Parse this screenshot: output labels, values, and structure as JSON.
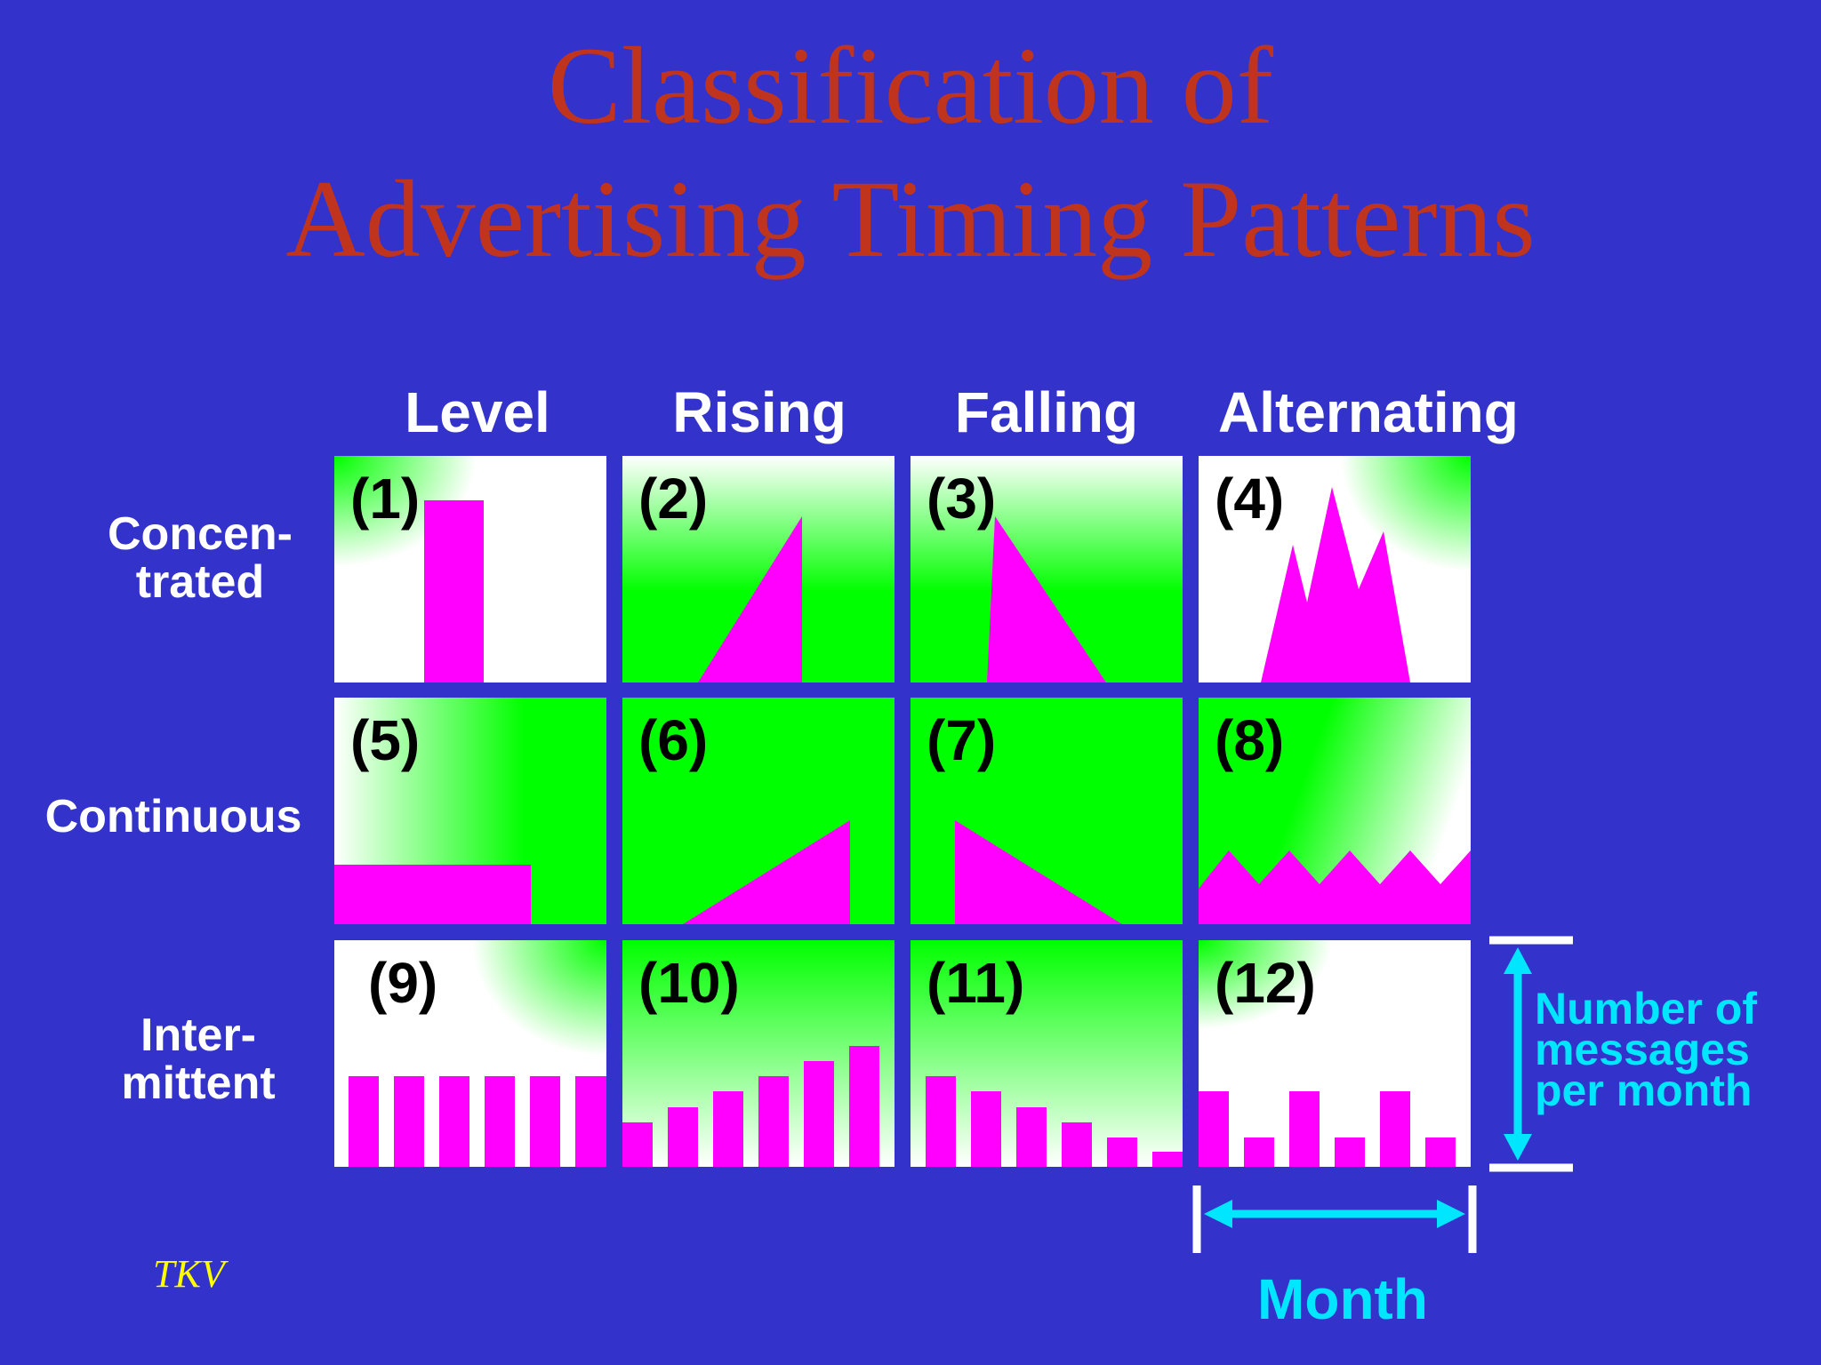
{
  "title_line1": "Classification of",
  "title_line2": "Advertising Timing Patterns",
  "columns": [
    "Level",
    "Rising",
    "Falling",
    "Alternating"
  ],
  "rows": {
    "concentrated": "Concen-\ntrated",
    "continuous": "Continuous",
    "intermittent": "Inter-\nmittent"
  },
  "cells": [
    "(1)",
    "(2)",
    "(3)",
    "(4)",
    "(5)",
    "(6)",
    "(7)",
    "(8)",
    "(9)",
    "(10)",
    "(11)",
    "(12)"
  ],
  "legend": {
    "y_label": "Number of\nmessages\nper month",
    "x_label": "Month"
  },
  "credit": "TKV",
  "colors": {
    "background": "#3333cc",
    "title": "#c0341d",
    "green": "#00ff00",
    "magenta": "#ff00ff",
    "cyan": "#00e6ff"
  }
}
